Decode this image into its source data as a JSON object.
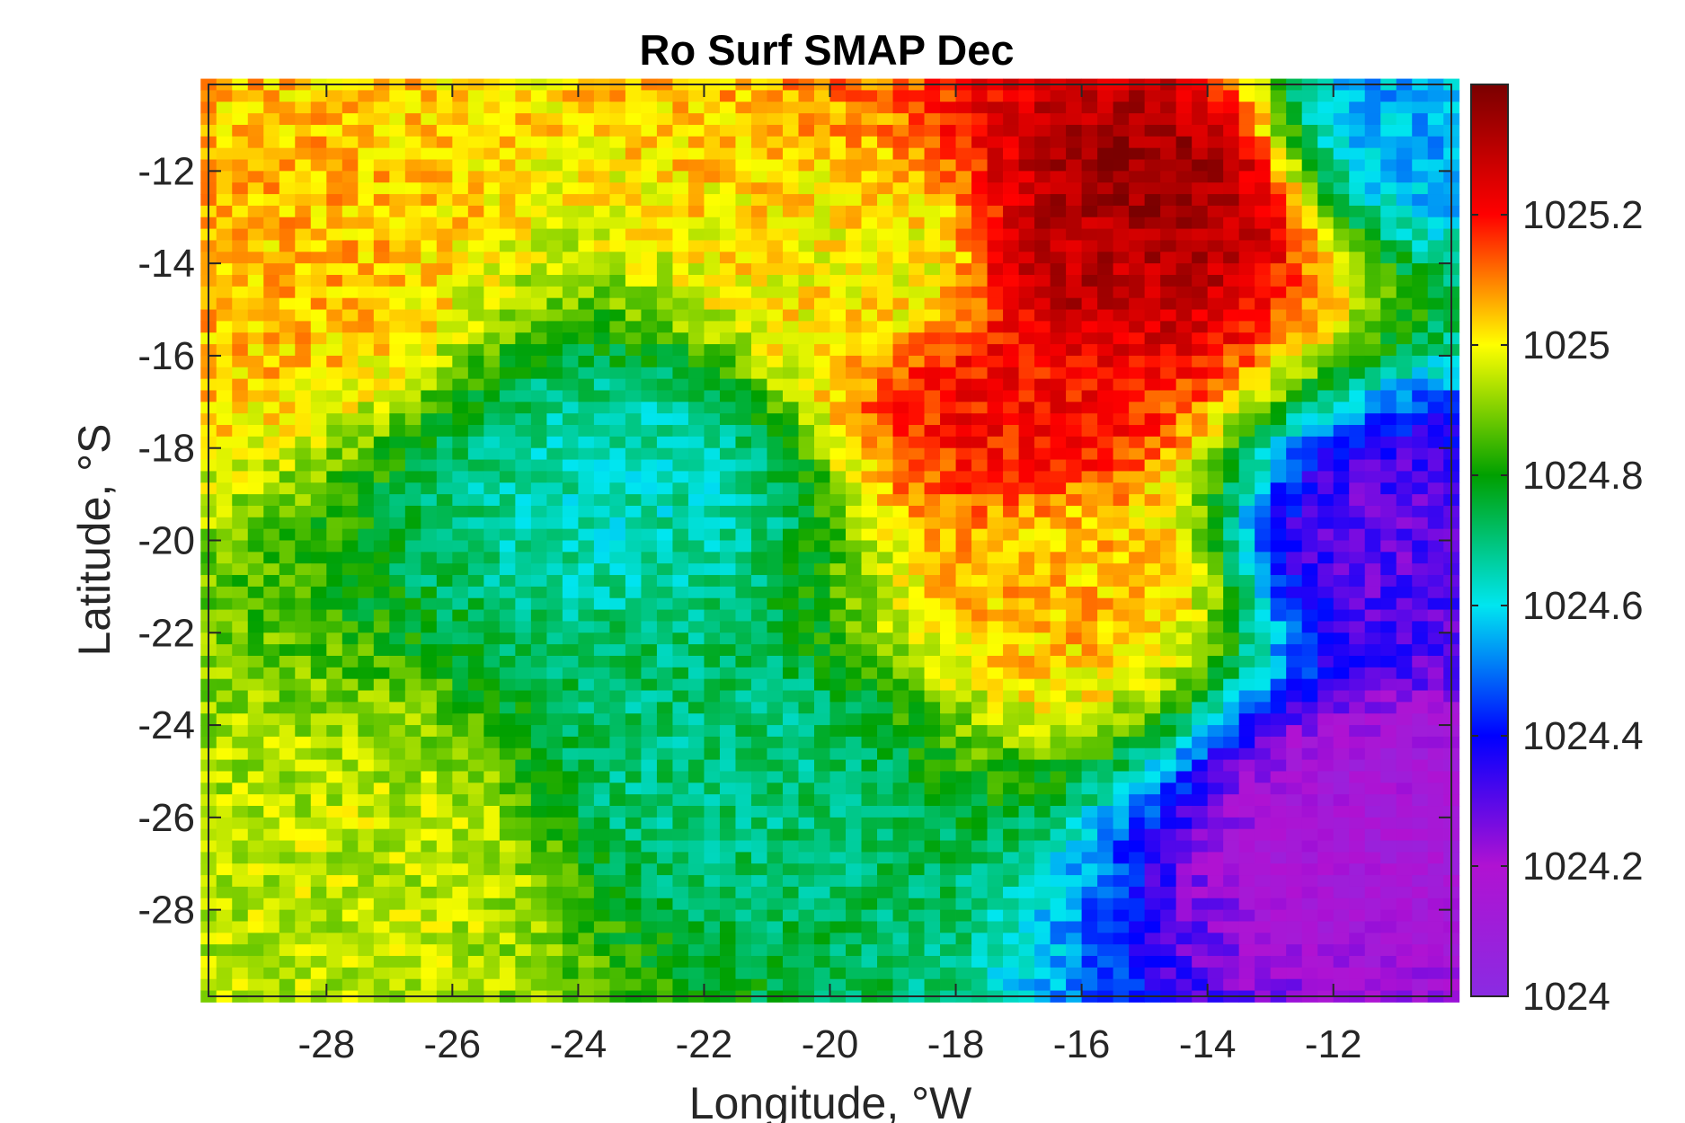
{
  "chart_data": {
    "type": "heatmap",
    "title": "Ro Surf SMAP Dec",
    "xlabel": "Longitude, °W",
    "ylabel": "Latitude, °S",
    "xlim": [
      -29.875,
      -10.125
    ],
    "ylim": [
      -29.875,
      -10.125
    ],
    "y_direction": "normal",
    "grid": "off",
    "x_ticks": [
      -28,
      -26,
      -24,
      -22,
      -20,
      -18,
      -16,
      -14,
      -12
    ],
    "x_tick_labels": [
      "-28",
      "-26",
      "-24",
      "-22",
      "-20",
      "-18",
      "-16",
      "-14",
      "-12"
    ],
    "y_ticks": [
      -12,
      -14,
      -16,
      -18,
      -20,
      -22,
      -24,
      -26,
      -28
    ],
    "y_tick_labels": [
      "-12",
      "-14",
      "-16",
      "-18",
      "-20",
      "-22",
      "-24",
      "-26",
      "-28"
    ],
    "grid_x": {
      "start": -29.875,
      "step": 0.25,
      "count": 80
    },
    "grid_y": {
      "start": -10.125,
      "step": -0.25,
      "count": 80
    },
    "colormap": "jet-like (purple-blue-cyan-green-yellow-red-darkred)",
    "colorbar": {
      "location": "right",
      "range": [
        1024.0,
        1025.4
      ],
      "ticks": [
        1024,
        1024.2,
        1024.4,
        1024.6,
        1024.8,
        1025,
        1025.2
      ],
      "tick_labels": [
        "1024",
        "1024.2",
        "1024.4",
        "1024.6",
        "1024.8",
        "1025",
        "1025.2"
      ],
      "stops": [
        {
          "v": 1024.0,
          "color": "#8a2be2"
        },
        {
          "v": 1024.2,
          "color": "#b012d2"
        },
        {
          "v": 1024.4,
          "color": "#0000ff"
        },
        {
          "v": 1024.6,
          "color": "#00e6f0"
        },
        {
          "v": 1024.8,
          "color": "#00a000"
        },
        {
          "v": 1025.0,
          "color": "#ffff00"
        },
        {
          "v": 1025.2,
          "color": "#ff0000"
        },
        {
          "v": 1025.4,
          "color": "#7a0000"
        }
      ]
    },
    "field_description_anchors": [
      {
        "lon": -15.0,
        "lat": -12.5,
        "value": 1025.35
      },
      {
        "lon": -16.0,
        "lat": -14.0,
        "value": 1025.3
      },
      {
        "lon": -17.0,
        "lat": -17.0,
        "value": 1025.2
      },
      {
        "lon": -16.0,
        "lat": -21.0,
        "value": 1025.05
      },
      {
        "lon": -19.0,
        "lat": -14.0,
        "value": 1025.0
      },
      {
        "lon": -23.0,
        "lat": -19.0,
        "value": 1024.65
      },
      {
        "lon": -22.0,
        "lat": -25.0,
        "value": 1024.7
      },
      {
        "lon": -29.0,
        "lat": -14.0,
        "value": 1025.05
      },
      {
        "lon": -27.0,
        "lat": -27.0,
        "value": 1024.95
      },
      {
        "lon": -11.0,
        "lat": -20.0,
        "value": 1024.3
      },
      {
        "lon": -11.0,
        "lat": -26.0,
        "value": 1024.15
      },
      {
        "lon": -10.5,
        "lat": -11.0,
        "value": 1024.55
      }
    ]
  }
}
